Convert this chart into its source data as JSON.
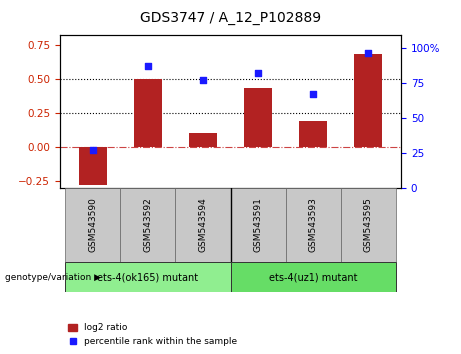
{
  "title": "GDS3747 / A_12_P102889",
  "categories": [
    "GSM543590",
    "GSM543592",
    "GSM543594",
    "GSM543591",
    "GSM543593",
    "GSM543595"
  ],
  "log2_ratio": [
    -0.28,
    0.5,
    0.1,
    0.43,
    0.19,
    0.68
  ],
  "percentile_rank": [
    27,
    87,
    77,
    82,
    67,
    97
  ],
  "bar_color": "#B22222",
  "dot_color": "#1a1aff",
  "ylim_left": [
    -0.3,
    0.82
  ],
  "ylim_right": [
    0,
    109.3
  ],
  "yticks_left": [
    -0.25,
    0.0,
    0.25,
    0.5,
    0.75
  ],
  "yticks_right": [
    0,
    25,
    50,
    75,
    100
  ],
  "group1_label": "ets-4(ok165) mutant",
  "group2_label": "ets-4(uz1) mutant",
  "group1_color": "#90EE90",
  "group2_color": "#66DD66",
  "group_label_prefix": "genotype/variation",
  "legend_bar_label": "log2 ratio",
  "legend_dot_label": "percentile rank within the sample",
  "bg_color_tick": "#c8c8c8",
  "title_fontsize": 10,
  "tick_fontsize": 7.5,
  "cat_fontsize": 6.5
}
